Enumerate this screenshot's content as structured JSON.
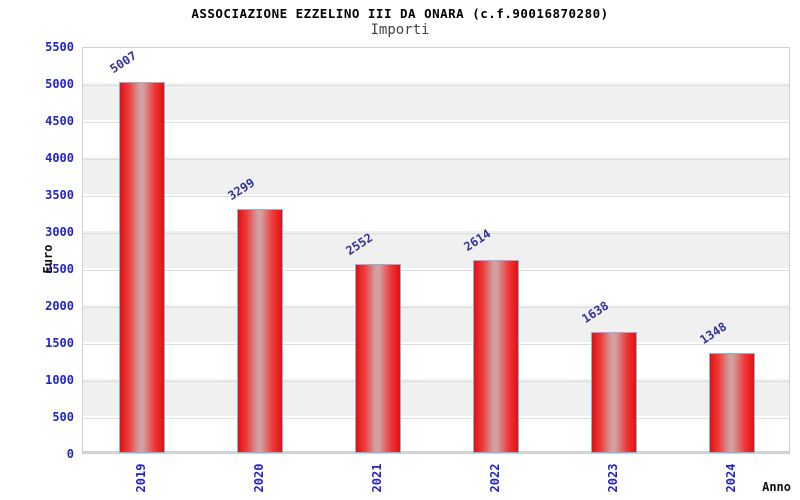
{
  "chart_data": {
    "type": "bar",
    "title": "ASSOCIAZIONE EZZELINO III DA ONARA (c.f.90016870280)",
    "subtitle": "Importi",
    "xlabel": "Anno",
    "ylabel": "Euro",
    "categories": [
      "2019",
      "2020",
      "2021",
      "2022",
      "2023",
      "2024"
    ],
    "values": [
      5007,
      3299,
      2552,
      2614,
      1638,
      1348
    ],
    "ylim": [
      0,
      5500
    ],
    "yticks": [
      0,
      500,
      1000,
      1500,
      2000,
      2500,
      3000,
      3500,
      4000,
      4500,
      5000,
      5500
    ],
    "grid": "horizontal-bands-alternating",
    "legend": null
  },
  "colors": {
    "axis_tick_label": "#2222cc",
    "value_label": "#333399",
    "bar_edge_red": "#e01212",
    "bar_center_highlight": "#d29c9c",
    "bar_border_blue": "#8ab4de",
    "band_gray": "#f0f0f0",
    "grid_line": "#dcdcdc",
    "plot_border": "#d0d0d0",
    "title_color": "#000000",
    "subtitle_color": "#444444"
  }
}
